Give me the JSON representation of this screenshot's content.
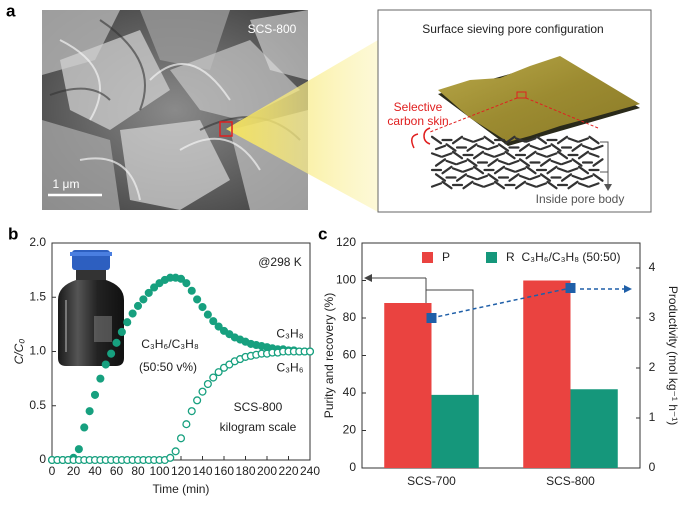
{
  "panel_a": {
    "panel_label": "a",
    "image_label": "SCS-800",
    "scale_bar": "1 μm",
    "schematic_title": "Surface sieving pore configuration",
    "skin_label": [
      "Selective",
      "carbon skin"
    ],
    "body_label": "Inside pore body"
  },
  "chart_data": [
    {
      "type": "line",
      "panel_label": "b",
      "xlabel": "Time (min)",
      "ylabel": "C/C₀",
      "annotations": [
        "@298 K",
        "C₃H₆/C₃H₈",
        "(50:50 v%)",
        "SCS-800",
        "kilogram scale"
      ],
      "xlim": [
        0,
        240
      ],
      "xticks": [
        0,
        20,
        40,
        60,
        80,
        100,
        120,
        140,
        160,
        180,
        200,
        220,
        240
      ],
      "ylim": [
        0,
        2
      ],
      "yticks": [
        0,
        0.5,
        {
          "value": 1,
          "label": "1.0"
        },
        1.5,
        {
          "value": 2,
          "label": "2.0"
        }
      ],
      "x": [
        0,
        5,
        10,
        15,
        20,
        25,
        30,
        35,
        40,
        45,
        50,
        55,
        60,
        65,
        70,
        75,
        80,
        85,
        90,
        95,
        100,
        105,
        110,
        115,
        120,
        125,
        130,
        135,
        140,
        145,
        150,
        155,
        160,
        165,
        170,
        175,
        180,
        185,
        190,
        195,
        200,
        205,
        210,
        215,
        220,
        225,
        230,
        235,
        240
      ],
      "series": [
        {
          "name": "C₃H₈",
          "color": "#17a07f",
          "marker": "filled",
          "values": [
            0,
            0,
            0,
            0,
            0.02,
            0.1,
            0.3,
            0.45,
            0.6,
            0.75,
            0.88,
            0.98,
            1.08,
            1.18,
            1.27,
            1.35,
            1.42,
            1.48,
            1.54,
            1.59,
            1.63,
            1.66,
            1.68,
            1.68,
            1.67,
            1.63,
            1.56,
            1.48,
            1.41,
            1.34,
            1.28,
            1.23,
            1.19,
            1.16,
            1.13,
            1.11,
            1.09,
            1.07,
            1.06,
            1.05,
            1.04,
            1.03,
            1.02,
            1.02,
            1.01,
            1.01,
            1,
            1,
            1
          ]
        },
        {
          "name": "C₃H₆",
          "color": "#17a07f",
          "marker": "open",
          "values": [
            0,
            0,
            0,
            0,
            0,
            0,
            0,
            0,
            0,
            0,
            0,
            0,
            0,
            0,
            0,
            0,
            0,
            0,
            0,
            0,
            0,
            0,
            0.02,
            0.08,
            0.2,
            0.33,
            0.45,
            0.55,
            0.63,
            0.7,
            0.76,
            0.81,
            0.85,
            0.88,
            0.91,
            0.93,
            0.95,
            0.96,
            0.97,
            0.98,
            0.98,
            0.99,
            0.99,
            1,
            1,
            1,
            1,
            1,
            1
          ]
        }
      ]
    },
    {
      "type": "bar",
      "panel_label": "c",
      "ylabel": "Purity and recovery (%)",
      "y2label": "Productivity (mol kg⁻¹ h⁻¹)",
      "annotations": [
        "C₃H₆/C₃H₈ (50:50)"
      ],
      "categories": [
        "SCS-700",
        "SCS-800"
      ],
      "ylim": [
        0,
        120
      ],
      "yticks": [
        0,
        20,
        40,
        60,
        80,
        100,
        120
      ],
      "y2lim": [
        0,
        4.5
      ],
      "y2ticks": [
        0,
        1,
        2,
        3,
        4
      ],
      "series": [
        {
          "name": "P",
          "color": "#ea4340",
          "values": [
            88,
            100
          ]
        },
        {
          "name": "R",
          "color": "#15977b",
          "values": [
            39,
            42
          ]
        },
        {
          "color": "#1f5fa8",
          "axis": "y2",
          "values": [
            3.0,
            3.6
          ]
        }
      ]
    }
  ]
}
